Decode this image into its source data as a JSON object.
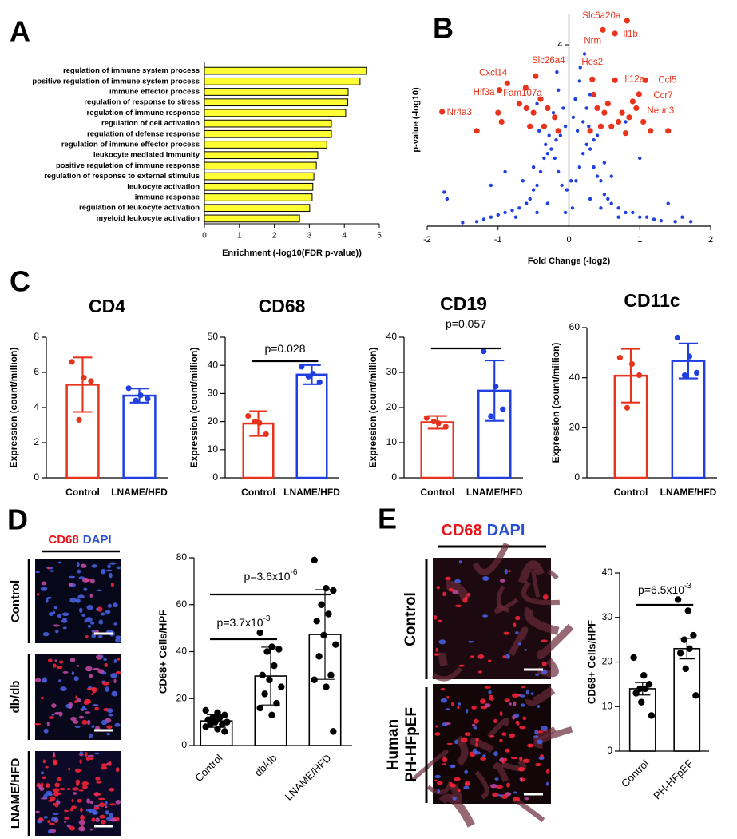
{
  "chart_data": [
    {
      "type": "hbar",
      "panel": "A",
      "categories": [
        "regulation of immune system process",
        "positive regulation of immune system process",
        "immune effector process",
        "regulation of response to stress",
        "regulation of immune response",
        "regulation of cell activation",
        "regulation of defense response",
        "regulation of immune effector process",
        "leukocyte mediated immunity",
        "positive regulation of immune response",
        "regulation of response to external stimulus",
        "leukocyte activation",
        "immune response",
        "regulation of leukocyte activation",
        "myeloid leukocyte activation"
      ],
      "values": [
        4.63,
        4.45,
        4.11,
        4.1,
        4.04,
        3.63,
        3.63,
        3.5,
        3.24,
        3.2,
        3.13,
        3.1,
        3.08,
        3.01,
        2.72
      ],
      "color": "#ffff33",
      "xlim": [
        0,
        5
      ],
      "xticks": [
        0,
        1,
        2,
        3,
        4,
        5
      ],
      "xlabel": "Enrichment (-log10(FDR p-value))"
    },
    {
      "type": "scatter",
      "panel": "B",
      "xlabel": "Fold Change (-log2)",
      "ylabel": "p-value (-log10)",
      "xlim": [
        -2,
        2
      ],
      "ylim": [
        0,
        4.6
      ],
      "xticks": [
        -2,
        -1,
        0,
        1,
        2
      ],
      "yticks": [
        4
      ],
      "series": [
        {
          "color": "#1f3fe0",
          "x": [
            -0.05,
            0.05,
            -0.1,
            0.1,
            -0.15,
            0.15,
            -0.2,
            0.2,
            -0.25,
            0.25,
            -0.3,
            0.3,
            -0.35,
            0.35,
            -0.4,
            0.4,
            -0.45,
            0.45,
            -0.5,
            0.5,
            -0.55,
            0.55,
            -0.6,
            0.6,
            -0.7,
            0.7,
            -0.8,
            0.8,
            -0.9,
            0.9,
            -1.0,
            1.0,
            -1.1,
            1.1,
            -1.2,
            1.2,
            -1.3,
            1.3,
            -1.5,
            1.5,
            -1.76,
            1.72,
            1.6,
            -1.72,
            -0.05,
            -0.08,
            0.06,
            0.09,
            -0.12,
            0.12,
            -0.18,
            0.2,
            0.28,
            -0.28,
            0.15,
            -0.15,
            0.35,
            -0.33,
            0.4,
            -0.42,
            0.25,
            -0.22,
            0.5,
            -0.5,
            0.03,
            -0.03,
            0.6,
            -0.65,
            0.3,
            -0.3,
            0.45,
            -0.45,
            0.7,
            -0.75,
            0.16,
            -0.17,
            0.22,
            0.3,
            -0.45,
            0.8,
            1.0,
            -0.9,
            1.4,
            -1.1
          ],
          "values": [
            0.3,
            0.4,
            0.9,
            1.0,
            1.2,
            1.3,
            1.5,
            1.6,
            1.7,
            1.8,
            1.6,
            1.7,
            1.5,
            1.3,
            1.2,
            1.1,
            0.9,
            1.0,
            0.8,
            0.7,
            0.6,
            0.6,
            0.5,
            0.5,
            0.4,
            0.4,
            0.35,
            0.3,
            0.3,
            0.3,
            0.25,
            0.2,
            0.2,
            0.2,
            0.15,
            0.15,
            0.1,
            0.12,
            0.08,
            0.1,
            0.75,
            0.1,
            0.2,
            0.6,
            2.2,
            2.6,
            2.4,
            2.8,
            2.0,
            2.1,
            1.9,
            2.3,
            2.2,
            2.0,
            3.2,
            3.0,
            1.9,
            1.8,
            2.0,
            2.1,
            2.6,
            2.5,
            1.4,
            1.3,
            1.0,
            0.8,
            1.1,
            1.0,
            0.6,
            0.5,
            0.4,
            0.3,
            0.2,
            0.2,
            3.5,
            3.4,
            3.8,
            2.9,
            2.7,
            2.3,
            1.5,
            1.2,
            0.5,
            0.9
          ]
        },
        {
          "color": "#e8341c",
          "x": [
            0.82,
            0.48,
            0.65,
            0.33,
            0.65,
            1.08,
            0.99,
            0.9,
            -0.47,
            -0.87,
            -0.98,
            -0.61,
            -1.79,
            0.35,
            0.4,
            0.5,
            0.55,
            0.6,
            0.7,
            0.75,
            0.85,
            0.95,
            1.05,
            1.15,
            1.4,
            0.3,
            0.45,
            0.8,
            -0.15,
            -0.2,
            -0.3,
            -0.35,
            -0.5,
            -0.55,
            -0.7,
            -0.95,
            -1.0,
            -1.3,
            -0.4,
            -0.6
          ],
          "values": [
            4.53,
            4.33,
            4.25,
            3.24,
            3.22,
            3.22,
            2.91,
            2.75,
            3.31,
            3.15,
            3.0,
            3.05,
            2.52,
            2.9,
            2.6,
            2.5,
            2.7,
            2.2,
            2.3,
            2.5,
            2.4,
            2.6,
            2.3,
            2.1,
            2.1,
            2.1,
            2.2,
            2.05,
            2.1,
            2.4,
            2.6,
            2.2,
            2.5,
            2.2,
            2.7,
            2.3,
            2.5,
            2.1,
            2.8,
            2.6
          ],
          "point_labels": [
            "Slc6a20a",
            "Nrm",
            "Il1b",
            "Hes2",
            "Il12a",
            "Ccl5",
            "Ccr7",
            "Neurl3",
            "Slc26a4",
            "Cxcl14",
            "Hif3a",
            "Fam107a",
            "Nr4a3",
            null,
            null,
            null,
            null,
            null,
            null,
            null,
            null,
            null,
            null,
            null,
            null,
            null,
            null,
            null,
            null,
            null,
            null,
            null,
            null,
            null,
            null,
            null,
            null,
            null,
            null,
            null
          ]
        }
      ]
    },
    {
      "type": "vbar",
      "panel": "C",
      "title": "CD4",
      "ylabel": "Expression (count/million)",
      "categories": [
        "Control",
        "LNAME/HFD"
      ],
      "colors": [
        "#e8341c",
        "#1f3fe0"
      ],
      "values": [
        5.3,
        4.68
      ],
      "errors": [
        1.55,
        0.4
      ],
      "points": [
        [
          6.6,
          5.7,
          5.5,
          3.3
        ],
        [
          5.1,
          4.7,
          4.5,
          4.4
        ]
      ],
      "ylim": [
        0,
        8
      ],
      "yticks": [
        0,
        2,
        4,
        6,
        8
      ]
    },
    {
      "type": "vbar",
      "title": "CD68",
      "ylabel": "Expression (count/million)",
      "categories": [
        "Control",
        "LNAME/HFD"
      ],
      "colors": [
        "#e8341c",
        "#1f3fe0"
      ],
      "values": [
        19.3,
        36.7
      ],
      "errors": [
        4.4,
        3.4
      ],
      "points": [
        [
          22,
          19.5,
          15.5,
          20
        ],
        [
          39.5,
          37,
          34,
          36
        ]
      ],
      "ylim": [
        0,
        50
      ],
      "yticks": [
        0,
        10,
        20,
        30,
        40,
        50
      ],
      "annotations": [
        {
          "text": "p=0.028"
        }
      ]
    },
    {
      "type": "vbar",
      "title": "CD19",
      "ylabel": "Expression (count/million)",
      "categories": [
        "Control",
        "LNAME/HFD"
      ],
      "colors": [
        "#e8341c",
        "#1f3fe0"
      ],
      "values": [
        15.8,
        24.8
      ],
      "errors": [
        1.8,
        8.6
      ],
      "points": [
        [
          17,
          15.5,
          14.5,
          16
        ],
        [
          36,
          26,
          19.5,
          17.5
        ]
      ],
      "ylim": [
        0,
        40
      ],
      "yticks": [
        0,
        10,
        20,
        30,
        40
      ],
      "annotations": [
        {
          "text": "p=0.057"
        }
      ]
    },
    {
      "type": "vbar",
      "title": "CD11c",
      "ylabel": "Expression (count/million)",
      "categories": [
        "Control",
        "LNAME/HFD"
      ],
      "colors": [
        "#e8341c",
        "#1f3fe0"
      ],
      "values": [
        40.8,
        46.7
      ],
      "errors": [
        10.7,
        7
      ],
      "points": [
        [
          48,
          45.5,
          41,
          28
        ],
        [
          56,
          48.5,
          42,
          41
        ]
      ],
      "ylim": [
        0,
        60
      ],
      "yticks": [
        0,
        20,
        40,
        60
      ]
    },
    {
      "type": "vbar",
      "panel": "D",
      "stain_labels": [
        "CD68",
        "DAPI"
      ],
      "image_labels": [
        "Control",
        "db/db",
        "LNAME/HFD"
      ],
      "ylabel": "CD68+ Cells/HPF",
      "categories": [
        "Control",
        "db/db",
        "LNAME/HFD"
      ],
      "color": "#000000",
      "values": [
        10.5,
        29.6,
        47.3
      ],
      "errors": [
        2.7,
        12.3,
        19.1
      ],
      "points": [
        [
          15,
          14,
          13,
          12,
          12,
          11,
          10,
          10,
          9,
          9,
          8,
          7,
          6
        ],
        [
          48,
          42,
          41,
          40,
          34,
          30,
          28,
          25,
          22,
          18,
          16,
          13
        ],
        [
          79,
          67,
          66,
          60,
          56,
          53,
          47,
          43,
          38,
          30,
          28,
          25,
          6
        ]
      ],
      "ylim": [
        0,
        80
      ],
      "yticks": [
        0,
        20,
        40,
        60,
        80
      ],
      "annotations": [
        {
          "text": "p=3.7x10",
          "exponent": "-3"
        },
        {
          "text": "p=3.6x10",
          "exponent": "-6"
        }
      ]
    },
    {
      "type": "vbar",
      "panel": "E",
      "stain_labels": [
        "CD68",
        "DAPI"
      ],
      "image_labels": [
        "Control",
        "Human",
        "PH-HFpEF"
      ],
      "ylabel": "CD68+ Cells/HPF",
      "categories": [
        "Control",
        "PH-HFpEF"
      ],
      "color": "#000000",
      "values": [
        14,
        23
      ],
      "errors": [
        1.4,
        2.3
      ],
      "points": [
        [
          21,
          17,
          15,
          14,
          14,
          13,
          11,
          8
        ],
        [
          34,
          31.5,
          26,
          25,
          23,
          22,
          18.5,
          12.5
        ]
      ],
      "ylim": [
        0,
        40
      ],
      "yticks": [
        0,
        10,
        20,
        30,
        40
      ],
      "annotations": [
        {
          "text": "p=6.5x10",
          "exponent": "-3"
        }
      ]
    }
  ]
}
